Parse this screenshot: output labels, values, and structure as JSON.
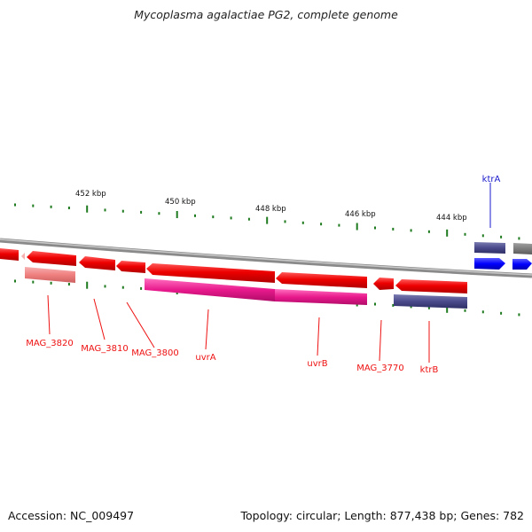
{
  "title": "Mycoplasma agalactiae PG2, complete genome",
  "footer": {
    "accession": "Accession: NC_009497",
    "stats": "Topology: circular; Length: 877,438 bp; Genes: 782"
  },
  "genome": {
    "accession": "NC_009497",
    "topology": "circular",
    "length_bp": 877438,
    "genes_count": 782
  },
  "ruler_ticks": [
    "452 kbp",
    "450 kbp",
    "448 kbp",
    "446 kbp",
    "444 kbp"
  ],
  "gene_labels": {
    "ktrA": "ktrA",
    "mag3820": "MAG_3820",
    "mag3810": "MAG_3810",
    "mag3800": "MAG_3800",
    "uvrA": "uvrA",
    "uvrB": "uvrB",
    "mag3770": "MAG_3770",
    "ktrB": "ktrB"
  },
  "colors": {
    "cds": "#ee0000",
    "highlight_pink": "#e8198c",
    "light_red": "#f08080",
    "ktr_dark": "#4a4a8c",
    "ktr_blue": "#0000ff",
    "backbone": "#8a8a8a",
    "ticks": "#1e7a1e"
  }
}
